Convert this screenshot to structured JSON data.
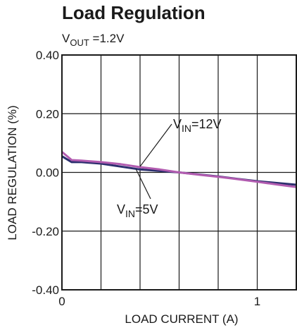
{
  "chart_data": {
    "type": "line",
    "title": "Load Regulation",
    "subtitle": {
      "prefix": "V",
      "sub": "OUT",
      "suffix": " =1.2V"
    },
    "xlabel": "LOAD CURRENT (A)",
    "ylabel": "LOAD REGULATION (%)",
    "xlim": [
      0,
      1.2
    ],
    "ylim": [
      -0.4,
      0.4
    ],
    "x_ticks": [
      {
        "value": 0,
        "label": "0"
      },
      {
        "value": 1,
        "label": "1"
      }
    ],
    "y_ticks": [
      {
        "value": 0.4,
        "label": "0.40"
      },
      {
        "value": 0.2,
        "label": "0.20"
      },
      {
        "value": 0.0,
        "label": "0.00"
      },
      {
        "value": -0.2,
        "label": "-0.20"
      },
      {
        "value": -0.4,
        "label": "-0.40"
      }
    ],
    "x_gridlines": [
      0.2,
      0.4,
      0.6,
      0.8,
      1.0
    ],
    "y_gridlines": [
      0.2,
      0.0,
      -0.2
    ],
    "grid": true,
    "series": [
      {
        "key": "vin5",
        "color": "#2b2f6e",
        "x": [
          0,
          0.05,
          0.1,
          0.2,
          0.3,
          0.4,
          0.5,
          0.6,
          0.7,
          0.8,
          0.9,
          1.0,
          1.1,
          1.2
        ],
        "y": [
          0.055,
          0.035,
          0.035,
          0.03,
          0.02,
          0.01,
          0.005,
          0.0,
          -0.007,
          -0.014,
          -0.022,
          -0.03,
          -0.036,
          -0.042
        ]
      },
      {
        "key": "vin12",
        "color": "#b25cb0",
        "x": [
          0,
          0.05,
          0.1,
          0.2,
          0.3,
          0.4,
          0.5,
          0.6,
          0.7,
          0.8,
          0.9,
          1.0,
          1.1,
          1.2
        ],
        "y": [
          0.07,
          0.042,
          0.04,
          0.035,
          0.028,
          0.018,
          0.01,
          0.0,
          -0.008,
          -0.015,
          -0.023,
          -0.032,
          -0.041,
          -0.05
        ]
      }
    ],
    "annotations": [
      {
        "series": "vin12",
        "main": "V",
        "sub": "IN",
        "rest": "=12V",
        "x": 0.4,
        "y": 0.02
      },
      {
        "series": "vin5",
        "main": "V",
        "sub": "IN",
        "rest": "=5V",
        "x": 0.38,
        "y": 0.01
      }
    ]
  }
}
